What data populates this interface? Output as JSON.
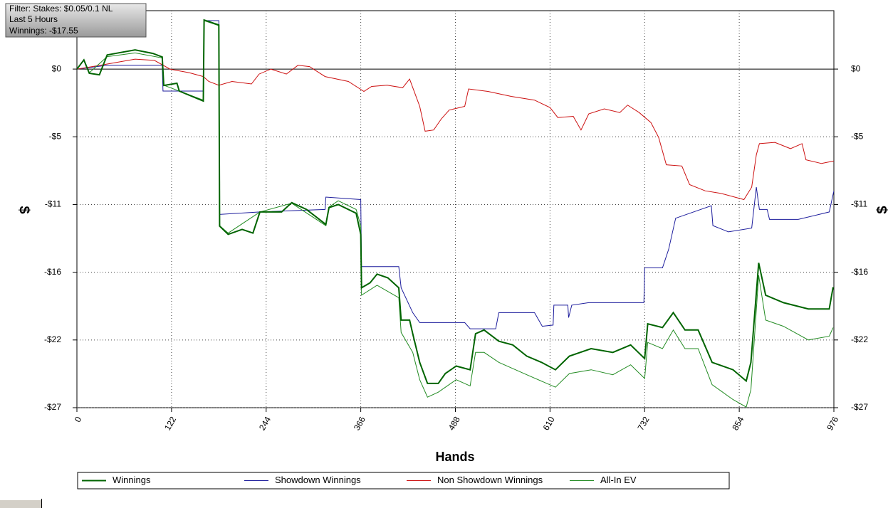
{
  "chart_data": {
    "type": "line",
    "xlabel": "Hands",
    "ylabel": "$",
    "annotations": [
      "Filter: Stakes: $0.05/0.1 NL",
      "Last  5 Hours",
      "Winnings: -$17.55"
    ],
    "xlim": [
      0,
      976
    ],
    "xticks": [
      0,
      122,
      244,
      366,
      488,
      610,
      732,
      854,
      976
    ],
    "ylim": [
      -27.25,
      4.7
    ],
    "yticks": [
      {
        "value": 0,
        "label": "$0"
      },
      {
        "value": -5.45,
        "label": "-$5"
      },
      {
        "value": -10.9,
        "label": "-$11"
      },
      {
        "value": -16.35,
        "label": "-$16"
      },
      {
        "value": -21.8,
        "label": "-$22"
      },
      {
        "value": -27.25,
        "label": "-$27"
      }
    ],
    "grid": true,
    "legend": "bottom",
    "series": [
      {
        "name": "Winnings",
        "color": "#006400",
        "line_width": 2,
        "x": [
          0,
          9,
          16,
          29,
          39,
          75,
          98,
          110,
          112,
          129,
          132,
          163,
          164,
          183,
          184,
          195,
          213,
          227,
          236,
          264,
          277,
          296,
          321,
          325,
          337,
          360,
          366,
          367,
          378,
          387,
          401,
          415,
          418,
          429,
          433,
          442,
          452,
          466,
          475,
          489,
          507,
          514,
          525,
          544,
          562,
          580,
          599,
          617,
          635,
          663,
          691,
          714,
          732,
          736,
          755,
          769,
          784,
          801,
          819,
          846,
          863,
          869,
          879,
          888,
          911,
          943,
          970,
          975
        ],
        "values": [
          0,
          0.74,
          -0.34,
          -0.46,
          1.14,
          1.54,
          1.26,
          0.97,
          -1.32,
          -1.14,
          -1.77,
          -2.57,
          3.95,
          3.55,
          -12.64,
          -13.3,
          -12.9,
          -13.2,
          -11.5,
          -11.5,
          -10.75,
          -11.3,
          -12.5,
          -11.15,
          -10.9,
          -11.6,
          -13.3,
          -17.6,
          -17.2,
          -16.5,
          -16.8,
          -17.6,
          -20.2,
          -20.2,
          -21.3,
          -23.6,
          -25.3,
          -25.3,
          -24.5,
          -23.9,
          -24.2,
          -21.3,
          -21.0,
          -21.9,
          -22.2,
          -23.1,
          -23.6,
          -24.2,
          -23.1,
          -22.5,
          -22.8,
          -22.2,
          -23.3,
          -20.5,
          -20.8,
          -19.6,
          -21.0,
          -21.0,
          -23.6,
          -24.2,
          -25.1,
          -23.6,
          -15.6,
          -18.2,
          -18.8,
          -19.3,
          -19.3,
          -17.55
        ]
      },
      {
        "name": "Showdown Winnings",
        "color": "#1c1c9c",
        "line_width": 1,
        "x": [
          0,
          39,
          110,
          111,
          163,
          164,
          183,
          184,
          236,
          320,
          321,
          366,
          367,
          415,
          418,
          433,
          442,
          500,
          507,
          540,
          544,
          590,
          600,
          614,
          615,
          633,
          634,
          638,
          660,
          731,
          732,
          755,
          763,
          772,
          818,
          820,
          840,
          870,
          876,
          880,
          890,
          893,
          930,
          970,
          976
        ],
        "values": [
          0,
          0.3,
          0.3,
          -1.77,
          -1.77,
          3.9,
          3.9,
          -11.7,
          -11.5,
          -11.3,
          -10.3,
          -10.5,
          -15.9,
          -15.9,
          -17.6,
          -19.6,
          -20.4,
          -20.4,
          -20.9,
          -20.9,
          -19.6,
          -19.6,
          -20.7,
          -20.6,
          -19.0,
          -19.0,
          -20.0,
          -19.0,
          -18.8,
          -18.8,
          -16.0,
          -16.0,
          -14.5,
          -12.0,
          -11.0,
          -12.6,
          -13.1,
          -12.8,
          -9.5,
          -11.3,
          -11.3,
          -12.1,
          -12.1,
          -11.5,
          -9.8
        ]
      },
      {
        "name": "Non Showdown Winnings",
        "color": "#cc1010",
        "line_width": 1,
        "x": [
          0,
          30,
          75,
          100,
          120,
          145,
          163,
          170,
          183,
          200,
          225,
          235,
          250,
          270,
          285,
          300,
          320,
          350,
          370,
          380,
          400,
          420,
          429,
          442,
          449,
          460,
          470,
          480,
          500,
          505,
          530,
          560,
          590,
          610,
          620,
          640,
          650,
          660,
          680,
          700,
          710,
          725,
          740,
          750,
          760,
          780,
          790,
          810,
          830,
          860,
          870,
          876,
          880,
          900,
          920,
          935,
          940,
          960,
          976
        ],
        "values": [
          0,
          0.3,
          0.8,
          0.7,
          0.0,
          -0.3,
          -0.6,
          -1.0,
          -1.3,
          -1.0,
          -1.2,
          -0.4,
          0.0,
          -0.4,
          0.3,
          0.2,
          -0.6,
          -1.0,
          -1.8,
          -1.4,
          -1.3,
          -1.5,
          -0.8,
          -3.0,
          -5.0,
          -4.9,
          -4.0,
          -3.3,
          -3.0,
          -1.6,
          -1.8,
          -2.2,
          -2.5,
          -3.1,
          -3.9,
          -3.8,
          -4.9,
          -3.6,
          -3.2,
          -3.5,
          -2.9,
          -3.5,
          -4.3,
          -5.5,
          -7.7,
          -7.8,
          -9.3,
          -9.8,
          -10.0,
          -10.5,
          -9.5,
          -6.9,
          -6.0,
          -5.9,
          -6.4,
          -6.0,
          -7.3,
          -7.6,
          -7.4
        ]
      },
      {
        "name": "All-In EV",
        "color": "#228b22",
        "line_width": 1,
        "x": [
          0,
          9,
          16,
          39,
          75,
          110,
          112,
          163,
          164,
          183,
          184,
          195,
          236,
          277,
          321,
          325,
          337,
          360,
          366,
          367,
          387,
          415,
          418,
          433,
          442,
          452,
          466,
          489,
          507,
          514,
          525,
          544,
          580,
          617,
          635,
          663,
          691,
          714,
          732,
          736,
          755,
          769,
          784,
          801,
          819,
          846,
          863,
          869,
          879,
          888,
          911,
          943,
          970,
          975
        ],
        "values": [
          0,
          0.7,
          -0.3,
          1.0,
          1.3,
          0.9,
          -1.3,
          -2.5,
          3.9,
          3.5,
          -12.6,
          -13.2,
          -11.5,
          -10.8,
          -12.6,
          -11.1,
          -10.6,
          -11.3,
          -12.6,
          -18.2,
          -17.4,
          -18.4,
          -21.2,
          -22.8,
          -25.0,
          -26.4,
          -26.0,
          -25.0,
          -25.5,
          -22.8,
          -22.8,
          -23.6,
          -24.6,
          -25.6,
          -24.5,
          -24.2,
          -24.6,
          -23.8,
          -24.9,
          -22.0,
          -22.5,
          -21.0,
          -22.5,
          -22.5,
          -25.4,
          -26.6,
          -27.2,
          -25.8,
          -16.6,
          -20.2,
          -20.7,
          -21.8,
          -21.5,
          -20.8
        ]
      }
    ]
  }
}
